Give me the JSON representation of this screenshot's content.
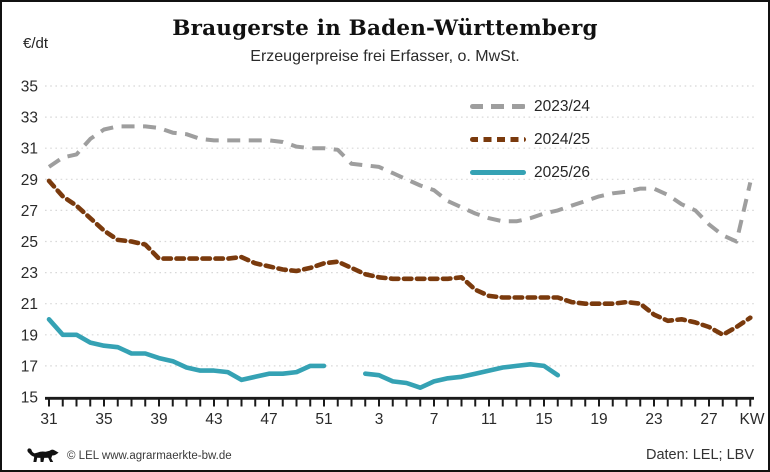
{
  "page": {
    "title": "Braugerste in Baden-Württemberg",
    "subtitle": "Erzeugerpreise frei Erfasser, o. MwSt.",
    "y_unit": "€/dt",
    "x_unit": "KW",
    "footer_left": "© LEL www.agrarmaerkte-bw.de",
    "footer_right": "Daten: LEL; LBV"
  },
  "colors": {
    "series_2023_24": "#9E9E9E",
    "series_2024_25": "#7A3A0D",
    "series_2025_26": "#35A2B4",
    "gridline": "#D8D8D8",
    "axis": "#1A1A1A",
    "text": "#262626"
  },
  "chart_data": {
    "type": "line",
    "title": "Braugerste in Baden-Württemberg",
    "subtitle": "Erzeugerpreise frei Erfasser, o. MwSt.",
    "ylabel": "€/dt",
    "xlabel": "KW",
    "ylim": [
      15,
      35
    ],
    "ytick_step": 2,
    "grid": "horizontal-dotted",
    "legend_position": "top-right-inside",
    "x_axis_note": "calendar weeks, marketing year July-June",
    "x_weeks": [
      31,
      32,
      33,
      34,
      35,
      36,
      37,
      38,
      39,
      40,
      41,
      42,
      43,
      44,
      45,
      46,
      47,
      48,
      49,
      50,
      51,
      52,
      1,
      2,
      3,
      4,
      5,
      6,
      7,
      8,
      9,
      10,
      11,
      12,
      13,
      14,
      15,
      16,
      17,
      18,
      19,
      20,
      21,
      22,
      23,
      24,
      25,
      26,
      27,
      28,
      29,
      30
    ],
    "x_tick_labels": [
      31,
      35,
      39,
      43,
      47,
      51,
      3,
      7,
      11,
      15,
      19,
      23,
      27
    ],
    "series": [
      {
        "name": "2023/24",
        "color": "#9E9E9E",
        "style": "dashed-long",
        "values": [
          29.8,
          30.4,
          30.6,
          31.6,
          32.2,
          32.4,
          32.4,
          32.4,
          32.3,
          32.0,
          31.9,
          31.6,
          31.5,
          31.5,
          31.5,
          31.5,
          31.5,
          31.4,
          31.1,
          31.0,
          31.0,
          30.9,
          30.0,
          29.9,
          29.8,
          29.4,
          29.0,
          28.6,
          28.3,
          27.6,
          27.2,
          26.8,
          26.5,
          26.3,
          26.3,
          26.5,
          26.8,
          27.0,
          27.3,
          27.6,
          27.9,
          28.1,
          28.2,
          28.4,
          28.4,
          28.0,
          27.4,
          27.0,
          26.1,
          25.4,
          25.0,
          28.8
        ]
      },
      {
        "name": "2024/25",
        "color": "#7A3A0D",
        "style": "dashed-short",
        "values": [
          28.9,
          27.9,
          27.3,
          26.5,
          25.7,
          25.1,
          25.0,
          24.8,
          23.9,
          23.9,
          23.9,
          23.9,
          23.9,
          23.9,
          24.0,
          23.6,
          23.4,
          23.2,
          23.1,
          23.3,
          23.6,
          23.7,
          23.3,
          22.9,
          22.7,
          22.6,
          22.6,
          22.6,
          22.6,
          22.6,
          22.7,
          21.9,
          21.5,
          21.4,
          21.4,
          21.4,
          21.4,
          21.4,
          21.1,
          21.0,
          21.0,
          21.0,
          21.1,
          21.0,
          20.3,
          19.9,
          20.0,
          19.8,
          19.5,
          19.0,
          19.5,
          20.1
        ]
      },
      {
        "name": "2025/26",
        "color": "#35A2B4",
        "style": "solid",
        "values": [
          20.0,
          19.0,
          19.0,
          18.5,
          18.3,
          18.2,
          17.8,
          17.8,
          17.5,
          17.3,
          16.9,
          16.7,
          16.7,
          16.6,
          16.1,
          16.3,
          16.5,
          16.5,
          16.6,
          17.0,
          17.0,
          null,
          null,
          16.5,
          16.4,
          16.0,
          15.9,
          15.6,
          16.0,
          16.2,
          16.3,
          16.5,
          16.7,
          16.9,
          17.0,
          17.1,
          17.0,
          16.4,
          null,
          null,
          null,
          null,
          null,
          null,
          null,
          null,
          null,
          null,
          null,
          null,
          null,
          null
        ]
      }
    ]
  }
}
